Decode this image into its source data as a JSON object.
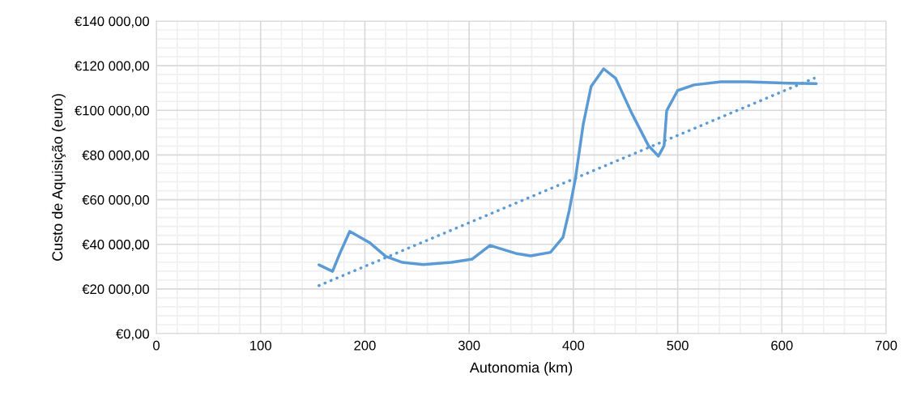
{
  "chart_data": {
    "type": "line",
    "xlabel": "Autonomia (km)",
    "ylabel": "Custo de Aquisição (euro)",
    "xlim": [
      0,
      700
    ],
    "xticks": [
      0,
      100,
      200,
      300,
      400,
      500,
      600,
      700
    ],
    "ylim": [
      0,
      140000
    ],
    "yticks": [
      {
        "value": 0,
        "label": "€0,00"
      },
      {
        "value": 20000,
        "label": "€20 000,00"
      },
      {
        "value": 40000,
        "label": "€40 000,00"
      },
      {
        "value": 60000,
        "label": "€60 000,00"
      },
      {
        "value": 80000,
        "label": "€80 000,00"
      },
      {
        "value": 100000,
        "label": "€100 000,00"
      },
      {
        "value": 120000,
        "label": "€120 000,00"
      },
      {
        "value": 140000,
        "label": "€140 000,00"
      }
    ],
    "grid": true,
    "legend": false,
    "series": [
      {
        "color": "#5b9bd5",
        "line_style": "solid",
        "x": [
          156,
          169,
          176,
          185.5,
          205,
          220,
          236,
          256,
          283,
          303,
          320,
          346,
          359,
          378,
          390,
          396,
          402,
          409.5,
          417,
          429,
          440.5,
          456,
          472,
          481.5,
          487,
          489.5,
          500,
          515.7,
          541.5,
          567,
          606,
          633
        ],
        "values": [
          30800,
          27900,
          35900,
          45800,
          40600,
          34600,
          31900,
          30900,
          31900,
          33400,
          39500,
          35800,
          34800,
          36400,
          43100,
          55100,
          69600,
          93900,
          110700,
          118600,
          114400,
          98700,
          84200,
          79500,
          84200,
          99900,
          108900,
          111400,
          112800,
          112800,
          112200,
          112000
        ]
      },
      {
        "color": "#5b9bd5",
        "line_style": "dotted",
        "x": [
          156,
          631
        ],
        "values": [
          21500,
          114400
        ]
      }
    ]
  }
}
